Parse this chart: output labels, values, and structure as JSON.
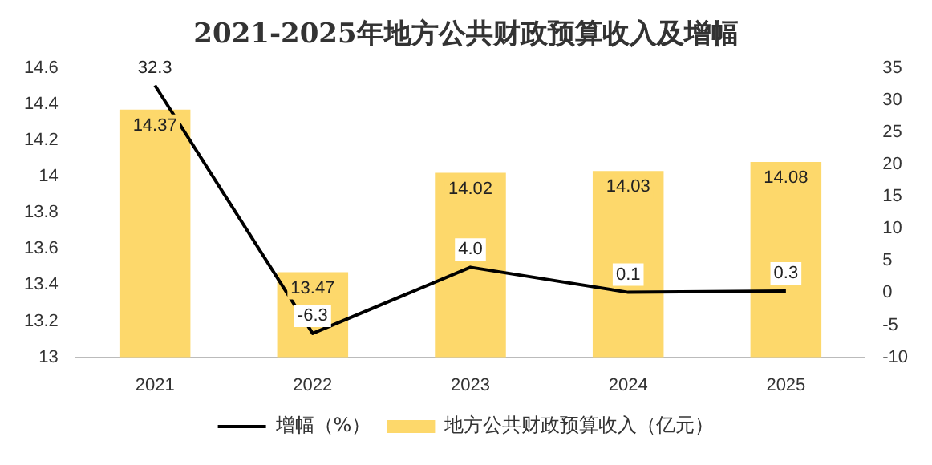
{
  "chart_data": {
    "type": "bar",
    "title": "2021-2025年地方公共财政预算收入及增幅",
    "categories": [
      "2021",
      "2022",
      "2023",
      "2024",
      "2025"
    ],
    "series": [
      {
        "name": "地方公共财政预算收入（亿元）",
        "color": "#fdd86b",
        "values": [
          14.37,
          13.47,
          14.02,
          14.03,
          14.08
        ],
        "value_labels": [
          "14.37",
          "13.47",
          "14.02",
          "14.03",
          "14.08"
        ]
      },
      {
        "name": "增幅（%）",
        "type": "line",
        "axis": "y2",
        "color": "#000000",
        "values": [
          32.3,
          -6.3,
          4.0,
          0.1,
          0.3
        ],
        "value_labels": [
          "32.3",
          "-6.3",
          "4.0",
          "0.1",
          "0.3"
        ]
      }
    ],
    "ylim": [
      13,
      14.6
    ],
    "yticks": [
      13,
      13.2,
      13.4,
      13.6,
      13.8,
      14,
      14.2,
      14.4,
      14.6
    ],
    "y2lim": [
      -10,
      35
    ],
    "y2ticks": [
      -10,
      -5,
      0,
      5,
      10,
      15,
      20,
      25,
      30,
      35
    ],
    "legend": "bottom",
    "grid": false,
    "marker": "none",
    "line_style": "solid"
  }
}
